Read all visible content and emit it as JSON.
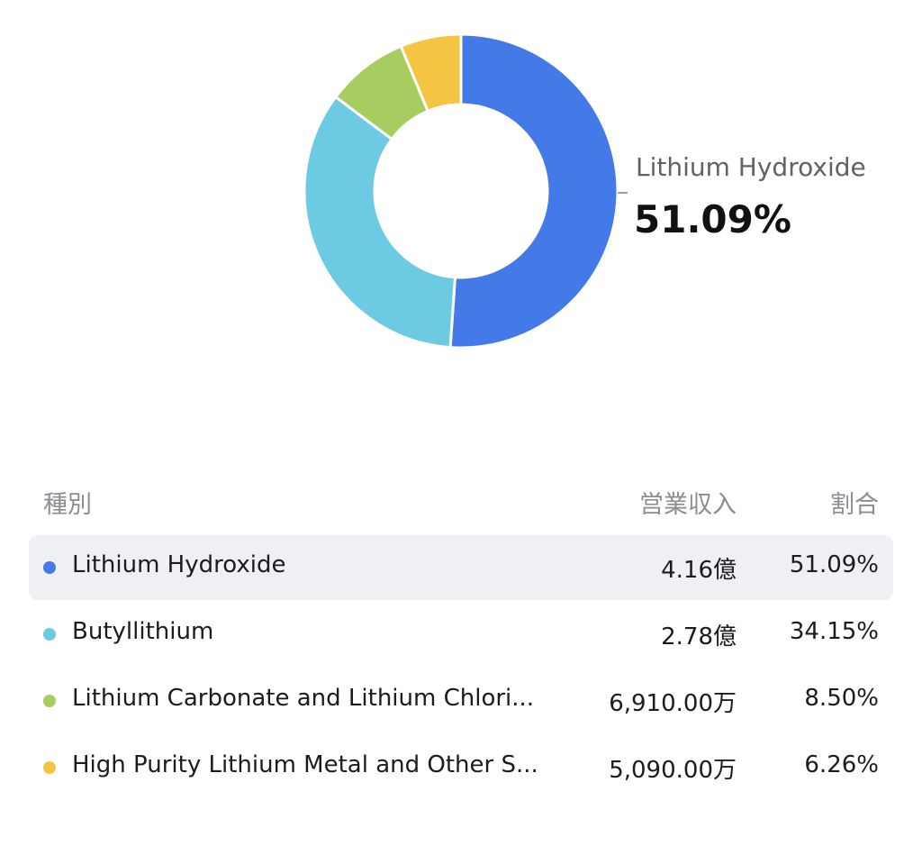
{
  "chart_data": {
    "type": "pie",
    "style": "donut",
    "categories": [
      "Lithium Hydroxide",
      "Butyllithium",
      "Lithium Carbonate and Lithium Chlori...",
      "High Purity Lithium Metal and Other S..."
    ],
    "values": [
      51.09,
      34.15,
      8.5,
      6.26
    ],
    "colors": [
      "#4479E8",
      "#6CCAE3",
      "#A7CD61",
      "#F3C543"
    ],
    "highlight": {
      "label": "Lithium Hydroxide",
      "value": "51.09%"
    }
  },
  "table": {
    "headers": {
      "type": "種別",
      "revenue": "営業収入",
      "ratio": "割合"
    },
    "rows": [
      {
        "name": "Lithium Hydroxide",
        "revenue": "4.16億",
        "ratio": "51.09%",
        "color": "#4479E8",
        "selected": true
      },
      {
        "name": "Butyllithium",
        "revenue": "2.78億",
        "ratio": "34.15%",
        "color": "#6CCAE3",
        "selected": false
      },
      {
        "name": "Lithium Carbonate and Lithium Chlori...",
        "revenue": "6,910.00万",
        "ratio": "8.50%",
        "color": "#A7CD61",
        "selected": false
      },
      {
        "name": "High Purity Lithium Metal and Other S...",
        "revenue": "5,090.00万",
        "ratio": "6.26%",
        "color": "#F3C543",
        "selected": false
      }
    ]
  }
}
